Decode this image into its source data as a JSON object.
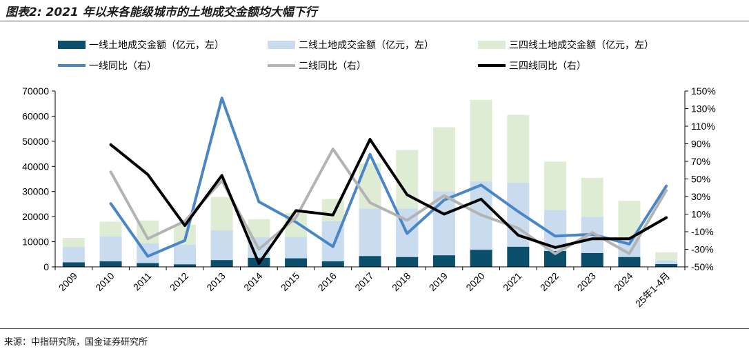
{
  "title": "图表2: 2021 年以来各能级城市的土地成交金额均大幅下行",
  "source": "来源：中指研究院，国金证券研究所",
  "chart_data": {
    "type": "bar",
    "categories": [
      "2009",
      "2010",
      "2011",
      "2012",
      "2013",
      "2014",
      "2015",
      "2016",
      "2017",
      "2018",
      "2019",
      "2020",
      "2021",
      "2022",
      "2023",
      "2024",
      "25年1-4月"
    ],
    "bar_series": [
      {
        "name": "一线土地成交金额（亿元，左）",
        "color": "#0b4f6c",
        "values": [
          1800,
          2200,
          1500,
          1000,
          2700,
          3600,
          3400,
          2200,
          4300,
          3900,
          4600,
          6800,
          8000,
          6300,
          5500,
          3900,
          1100
        ]
      },
      {
        "name": "二线土地成交金额（亿元，左）",
        "color": "#c9dcef",
        "values": [
          7900,
          12100,
          9300,
          8800,
          14500,
          11800,
          11900,
          18200,
          23200,
          23200,
          30000,
          34000,
          33400,
          22600,
          19900,
          11800,
          2500
        ]
      },
      {
        "name": "三四线土地成交金额（亿元，左）",
        "color": "#dfecd4",
        "values": [
          11500,
          18000,
          18500,
          16800,
          27800,
          19000,
          21500,
          27000,
          41200,
          46500,
          55600,
          66500,
          60500,
          41900,
          35400,
          26300,
          5800
        ]
      }
    ],
    "line_series": [
      {
        "name": "一线同比（右）",
        "color": "#4a86c6",
        "width": 4,
        "values": [
          null,
          22,
          -38,
          -20,
          142,
          24,
          1,
          -27,
          78,
          -12,
          26,
          43,
          13,
          -15,
          -13,
          -24,
          42
        ]
      },
      {
        "name": "二线同比（右）",
        "color": "#b3b3b3",
        "width": 4,
        "values": [
          null,
          58,
          -18,
          2,
          48,
          -30,
          6,
          84,
          23,
          3,
          31,
          9,
          -6,
          -35,
          -11,
          -35,
          37
        ]
      },
      {
        "name": "三四线同比（右）",
        "color": "#000000",
        "width": 4,
        "values": [
          null,
          89,
          55,
          -3,
          54,
          -46,
          14,
          9,
          95,
          32,
          10,
          27,
          -14,
          -28,
          -18,
          -18,
          6
        ]
      }
    ],
    "y_left": {
      "min": 0,
      "max": 70000,
      "ticks": [
        "0",
        "10000",
        "20000",
        "30000",
        "40000",
        "50000",
        "60000",
        "70000"
      ]
    },
    "y_right": {
      "min": -50,
      "max": 150,
      "ticks": [
        "-50%",
        "-30%",
        "-10%",
        "10%",
        "30%",
        "50%",
        "70%",
        "90%",
        "110%",
        "130%",
        "150%"
      ]
    },
    "legend_placement": "top",
    "grid": false
  }
}
